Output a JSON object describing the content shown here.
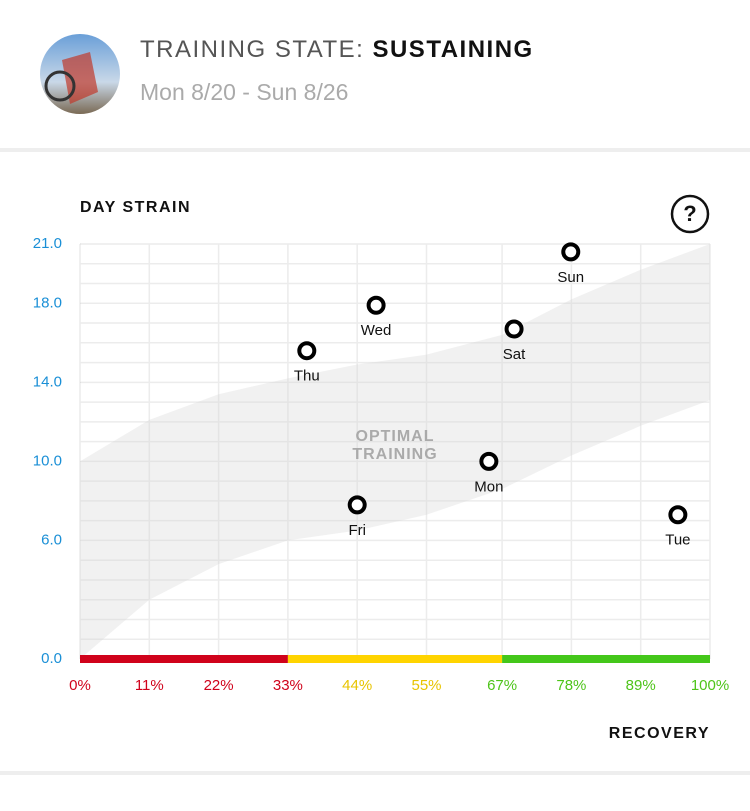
{
  "header": {
    "title_label": "TRAINING STATE:",
    "title_value": "SUSTAINING",
    "subtitle": "Mon 8/20 - Sun 8/26"
  },
  "help_icon": "?",
  "chart_data": {
    "type": "scatter",
    "y_label": "DAY STRAIN",
    "x_label": "RECOVERY",
    "categories": [
      "Mon",
      "Tue",
      "Wed",
      "Thu",
      "Fri",
      "Sat",
      "Sun"
    ],
    "x": [
      64.9,
      94.9,
      47.0,
      36.0,
      44.0,
      68.9,
      77.9
    ],
    "values": [
      10.0,
      7.3,
      17.9,
      15.6,
      7.8,
      16.7,
      20.6
    ],
    "color": "#000000",
    "xlim": [
      0,
      100
    ],
    "ylim": [
      0,
      21
    ],
    "xticks": [
      {
        "value": 0,
        "label": "0%"
      },
      {
        "value": 11,
        "label": "11%"
      },
      {
        "value": 22,
        "label": "22%"
      },
      {
        "value": 33,
        "label": "33%"
      },
      {
        "value": 44,
        "label": "44%"
      },
      {
        "value": 55,
        "label": "55%"
      },
      {
        "value": 67,
        "label": "67%"
      },
      {
        "value": 78,
        "label": "78%"
      },
      {
        "value": 89,
        "label": "89%"
      },
      {
        "value": 100,
        "label": "100%"
      }
    ],
    "x_tick_colors": [
      "#d0021b",
      "#d0021b",
      "#d0021b",
      "#d0021b",
      "#e8c400",
      "#e8c400",
      "#4ec41a",
      "#4ec41a",
      "#4ec41a",
      "#4ec41a"
    ],
    "yticks": [
      {
        "value": 0,
        "label": "0.0"
      },
      {
        "value": 6,
        "label": "6.0"
      },
      {
        "value": 10,
        "label": "10.0"
      },
      {
        "value": 14,
        "label": "14.0"
      },
      {
        "value": 18,
        "label": "18.0"
      },
      {
        "value": 21,
        "label": "21.0"
      }
    ],
    "recovery_zones": [
      {
        "from": 0,
        "to": 33,
        "color": "#d0021b"
      },
      {
        "from": 33,
        "to": 67,
        "color": "#ffd400"
      },
      {
        "from": 67,
        "to": 100,
        "color": "#44c71a"
      }
    ],
    "grid": true,
    "optimal_band": {
      "label_lines": [
        "OPTIMAL",
        "TRAINING"
      ],
      "x": [
        0,
        11,
        22,
        33,
        44,
        55,
        67,
        78,
        89,
        100
      ],
      "upper": [
        10.0,
        12.1,
        13.4,
        14.2,
        14.9,
        15.4,
        16.4,
        18.2,
        19.7,
        21.0
      ],
      "lower": [
        0,
        3.0,
        4.8,
        6.0,
        6.5,
        7.3,
        8.6,
        10.3,
        11.8,
        13.1
      ]
    }
  }
}
